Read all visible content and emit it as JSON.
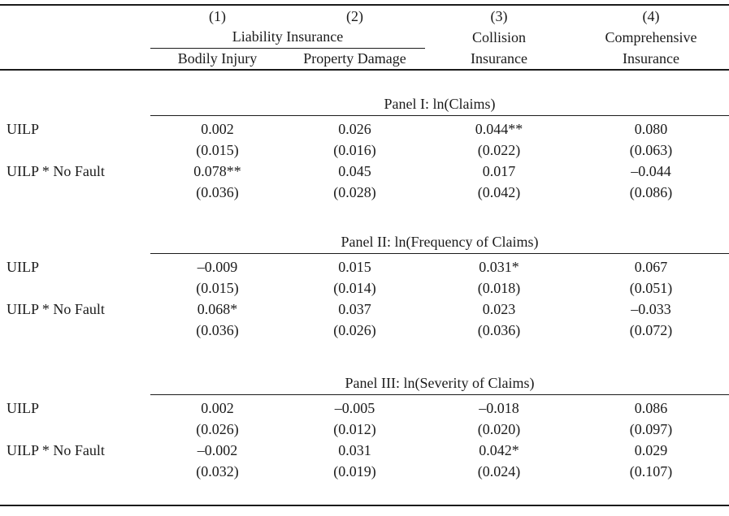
{
  "colors": {
    "background": "#ffffff",
    "text": "#1b1b1b",
    "rule": "#1b1b1b"
  },
  "table": {
    "header": {
      "group_label": "Liability Insurance",
      "columns": [
        {
          "num": "(1)",
          "sub": "Bodily Injury"
        },
        {
          "num": "(2)",
          "sub": "Property Damage"
        },
        {
          "num": "(3)",
          "top": "Collision",
          "bottom": "Insurance"
        },
        {
          "num": "(4)",
          "top": "Comprehensive",
          "bottom": "Insurance"
        }
      ]
    },
    "panels": [
      {
        "title": "Panel I: ln(Claims)",
        "rows": [
          {
            "label": "UILP",
            "values": [
              "0.002",
              "0.026",
              "0.044**",
              "0.080"
            ]
          },
          {
            "label": "",
            "values": [
              "(0.015)",
              "(0.016)",
              "(0.022)",
              "(0.063)"
            ]
          },
          {
            "label": "UILP * No Fault",
            "values": [
              "0.078**",
              "0.045",
              "0.017",
              "–0.044"
            ]
          },
          {
            "label": "",
            "values": [
              "(0.036)",
              "(0.028)",
              "(0.042)",
              "(0.086)"
            ]
          }
        ]
      },
      {
        "title": "Panel II: ln(Frequency of Claims)",
        "rows": [
          {
            "label": "UILP",
            "values": [
              "–0.009",
              "0.015",
              "0.031*",
              "0.067"
            ]
          },
          {
            "label": "",
            "values": [
              "(0.015)",
              "(0.014)",
              "(0.018)",
              "(0.051)"
            ]
          },
          {
            "label": "UILP * No Fault",
            "values": [
              "0.068*",
              "0.037",
              "0.023",
              "–0.033"
            ]
          },
          {
            "label": "",
            "values": [
              "(0.036)",
              "(0.026)",
              "(0.036)",
              "(0.072)"
            ]
          }
        ]
      },
      {
        "title": "Panel III: ln(Severity of Claims)",
        "rows": [
          {
            "label": "UILP",
            "values": [
              "0.002",
              "–0.005",
              "–0.018",
              "0.086"
            ]
          },
          {
            "label": "",
            "values": [
              "(0.026)",
              "(0.012)",
              "(0.020)",
              "(0.097)"
            ]
          },
          {
            "label": "UILP * No Fault",
            "values": [
              "–0.002",
              "0.031",
              "0.042*",
              "0.029"
            ]
          },
          {
            "label": "",
            "values": [
              "(0.032)",
              "(0.019)",
              "(0.024)",
              "(0.107)"
            ]
          }
        ]
      }
    ]
  }
}
